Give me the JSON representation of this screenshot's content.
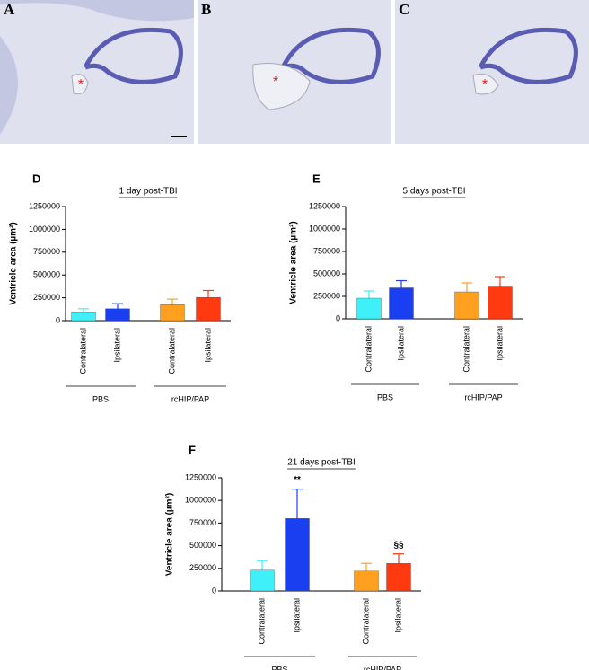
{
  "panels": [
    {
      "label": "A",
      "marker": "*"
    },
    {
      "label": "B",
      "marker": "*"
    },
    {
      "label": "C",
      "marker": "*"
    }
  ],
  "chart_data": [
    {
      "type": "bar",
      "panel": "D",
      "title": "1 day post-TBI",
      "ylabel": "Ventricle area (µm²)",
      "categories": [
        "Contralateral",
        "Ipsilateral",
        "Contralateral",
        "Ipsilateral"
      ],
      "values": [
        95000,
        130000,
        175000,
        255000
      ],
      "errors": [
        35000,
        55000,
        60000,
        75000
      ],
      "colors": [
        "#3ff0f8",
        "#1a3ff0",
        "#ffa020",
        "#ff3a10"
      ],
      "groups": [
        "PBS",
        "rcHIP/PAP"
      ],
      "ylim": [
        0,
        1250000
      ],
      "yticks": [
        0,
        250000,
        500000,
        750000,
        1000000,
        1250000
      ]
    },
    {
      "type": "bar",
      "panel": "E",
      "title": "5 days post-TBI",
      "ylabel": "Ventricle area (µm²)",
      "categories": [
        "Contralateral",
        "Ipsilateral",
        "Contralateral",
        "Ipsilateral"
      ],
      "values": [
        230000,
        345000,
        300000,
        365000
      ],
      "errors": [
        80000,
        80000,
        100000,
        105000
      ],
      "colors": [
        "#3ff0f8",
        "#1a3ff0",
        "#ffa020",
        "#ff3a10"
      ],
      "groups": [
        "PBS",
        "rcHIP/PAP"
      ],
      "ylim": [
        0,
        1250000
      ],
      "yticks": [
        0,
        250000,
        500000,
        750000,
        1000000,
        1250000
      ]
    },
    {
      "type": "bar",
      "panel": "F",
      "title": "21 days post-TBI",
      "ylabel": "Ventricle area (µm²)",
      "categories": [
        "Contralateral",
        "Ipsilateral",
        "Contralateral",
        "Ipsilateral"
      ],
      "values": [
        230000,
        800000,
        220000,
        305000
      ],
      "errors": [
        105000,
        325000,
        85000,
        105000
      ],
      "colors": [
        "#3ff0f8",
        "#1a3ff0",
        "#ffa020",
        "#ff3a10"
      ],
      "annotations": [
        null,
        "**",
        null,
        "§§"
      ],
      "groups": [
        "PBS",
        "rcHIP/PAP"
      ],
      "ylim": [
        0,
        1250000
      ],
      "yticks": [
        0,
        250000,
        500000,
        750000,
        1000000,
        1250000
      ]
    }
  ]
}
